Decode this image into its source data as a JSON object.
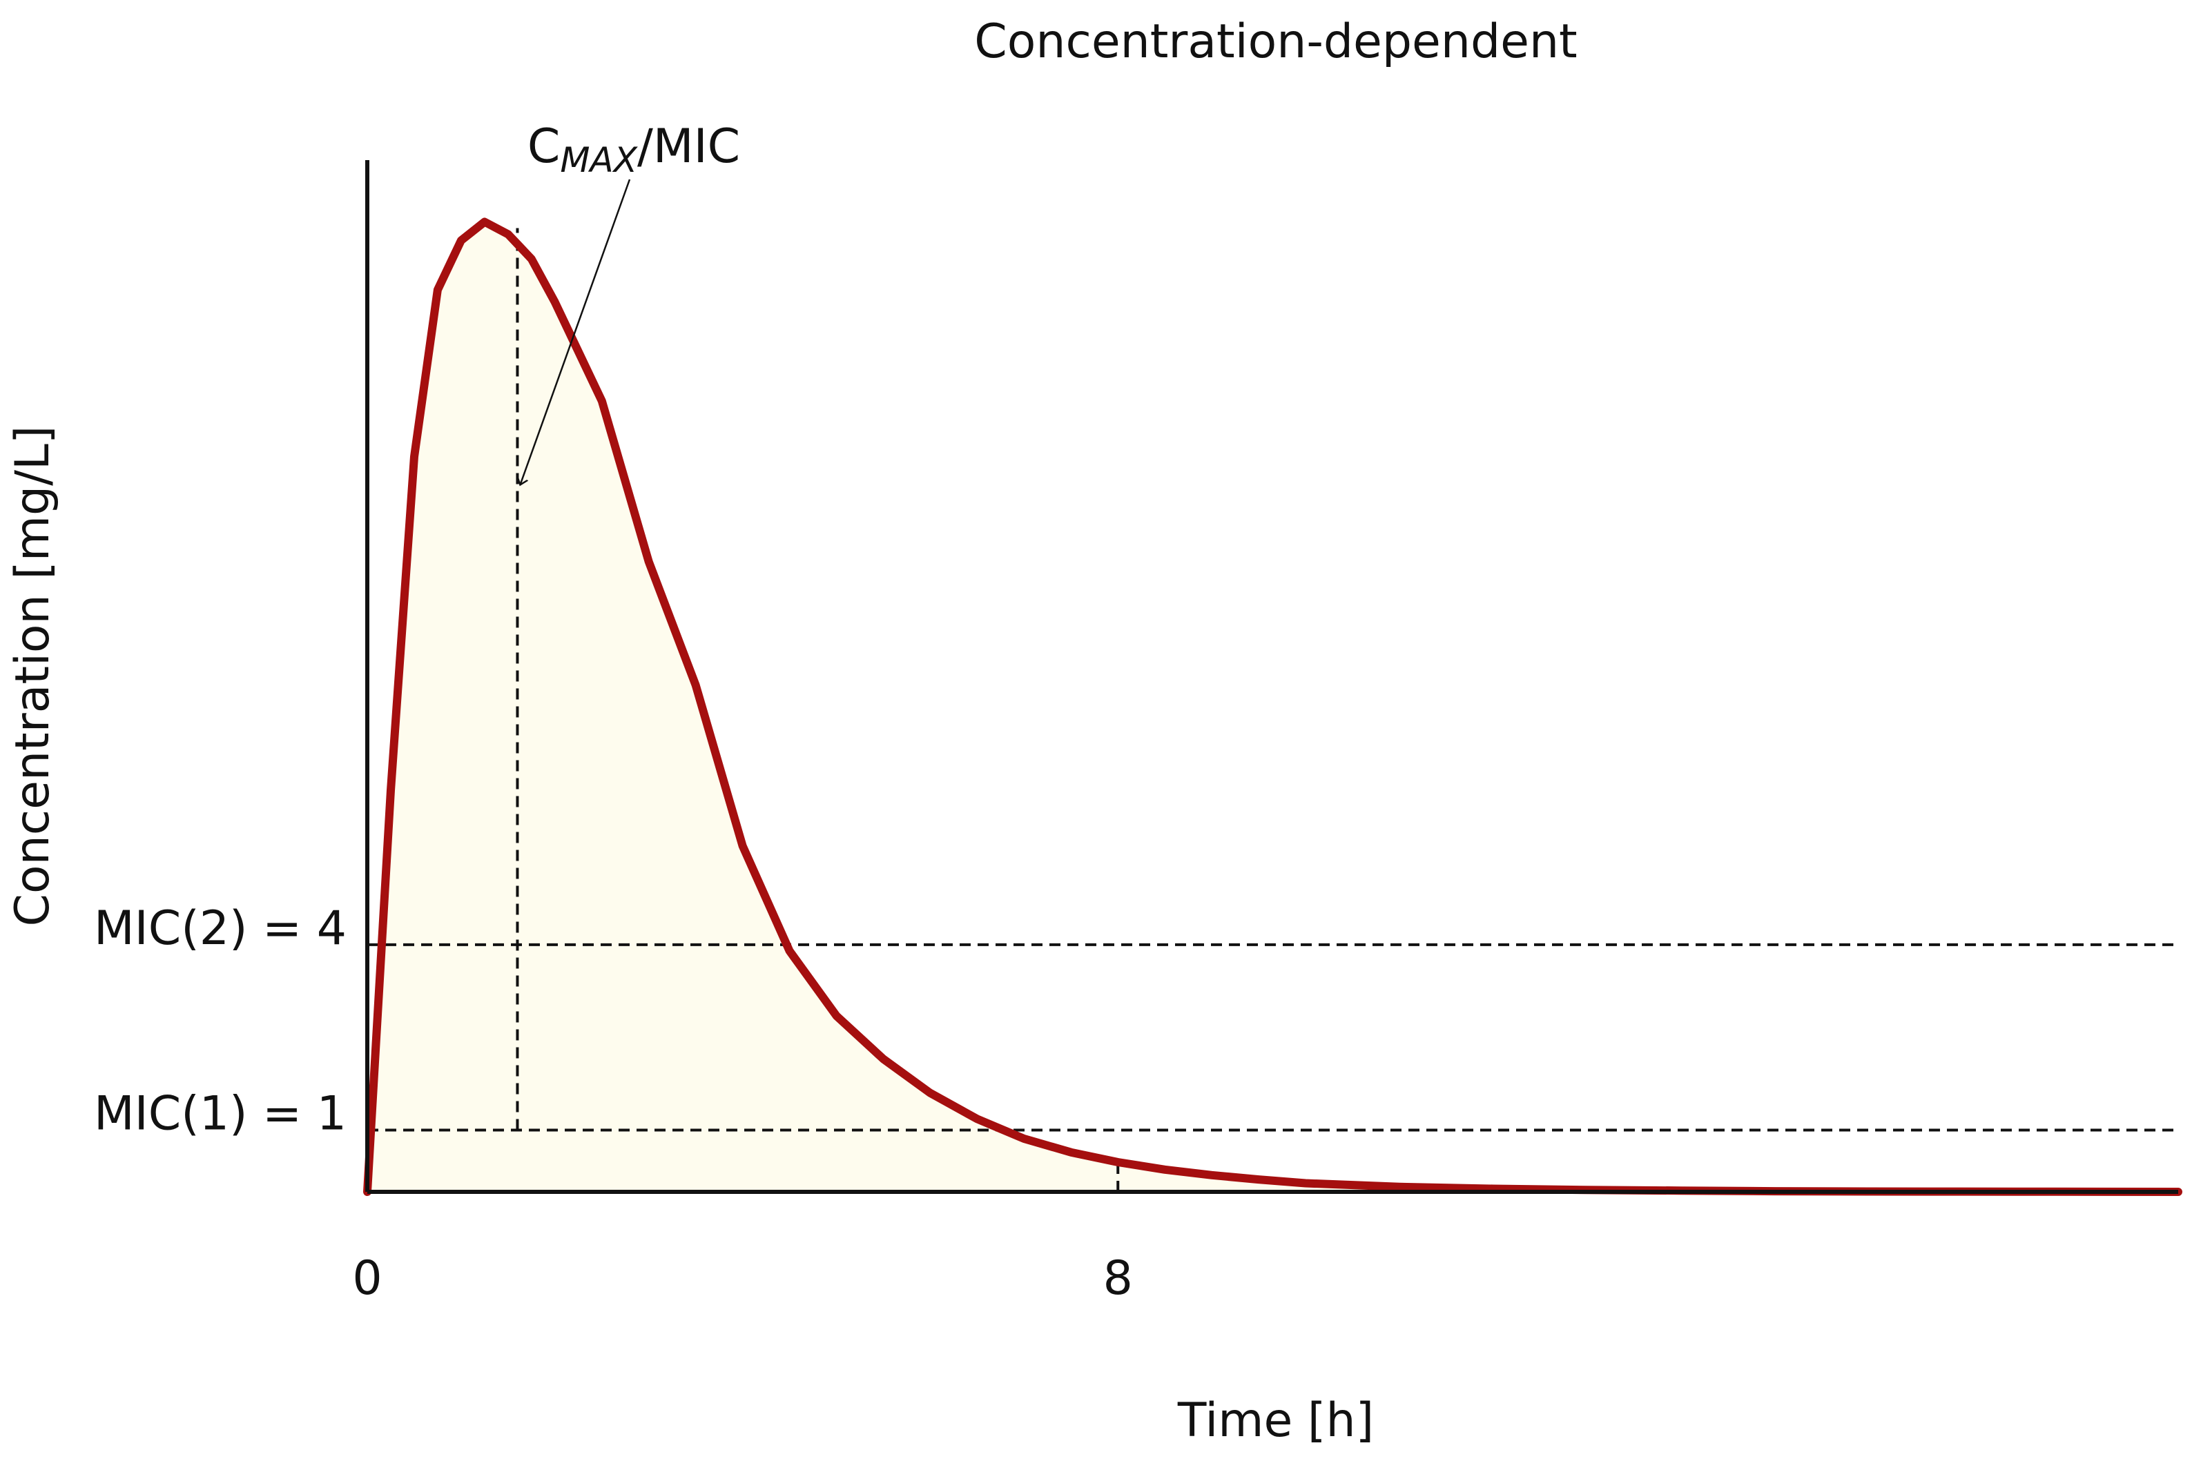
{
  "chart_data": {
    "type": "area",
    "title": "Concentration-dependent",
    "xlabel": "Time [h]",
    "ylabel": "Concentration [mg/L]",
    "x_ticks": [
      0,
      8
    ],
    "x_tick_labels": [
      "0",
      "8"
    ],
    "xlim": [
      0,
      19.3
    ],
    "ylim": [
      0,
      16.7
    ],
    "grid": false,
    "legend": "none",
    "thresholds": [
      {
        "label": "MIC(2) = 4",
        "value": 4
      },
      {
        "label": "MIC(1) = 1",
        "value": 1
      }
    ],
    "annotation": {
      "main": "C",
      "subscript": "MAX",
      "suffix": "/MIC",
      "x": 1.6,
      "y": 11.4
    },
    "marker_lines": [
      {
        "x": 1.6,
        "y_from": 1,
        "y_to": 15.6
      },
      {
        "x": 8,
        "y_from": 0,
        "y_to": 0.55
      }
    ],
    "series": [
      {
        "x": [
          0,
          0.25,
          0.5,
          0.75,
          1,
          1.25,
          1.5,
          1.75,
          2,
          2.5,
          3,
          3.5,
          4,
          4.5,
          5,
          5.5,
          6,
          6.5,
          7,
          7.5,
          8,
          8.5,
          9,
          9.5,
          10,
          11,
          12,
          13,
          14,
          15,
          16,
          17,
          18,
          19.3
        ],
        "y": [
          0,
          6.5,
          11.9,
          14.6,
          15.4,
          15.7,
          15.5,
          15.1,
          14.4,
          12.8,
          10.2,
          8.2,
          5.6,
          3.9,
          2.85,
          2.15,
          1.6,
          1.18,
          0.86,
          0.64,
          0.48,
          0.36,
          0.27,
          0.2,
          0.14,
          0.08,
          0.05,
          0.03,
          0.02,
          0.01,
          0.006,
          0.004,
          0.002,
          0
        ]
      }
    ],
    "colors": {
      "line": "#a50f0f",
      "fill": "#fefcee",
      "axes": "#111111"
    }
  }
}
